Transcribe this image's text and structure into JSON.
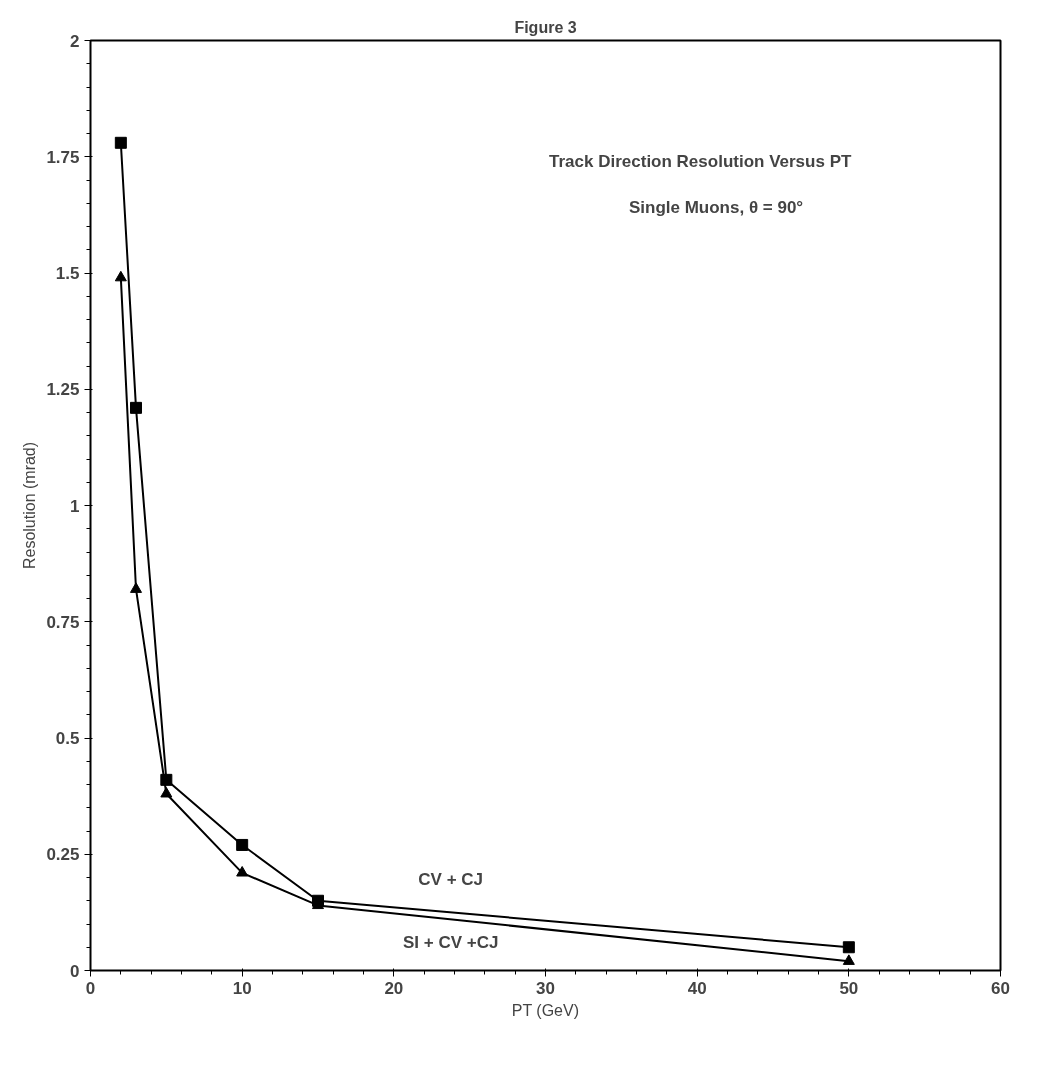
{
  "chart_data": {
    "type": "line",
    "title": "Figure 3",
    "xlabel": "PT (GeV)",
    "ylabel": "Resolution (mrad)",
    "annotations": [
      "Track Direction Resolution Versus PT",
      "Single Muons,  θ = 90°"
    ],
    "series": [
      {
        "name": "CV + CJ",
        "color": "#000000",
        "marker": "square",
        "x": [
          2,
          3,
          5,
          10,
          15,
          50
        ],
        "values": [
          1.78,
          1.21,
          0.41,
          0.27,
          0.15,
          0.05
        ]
      },
      {
        "name": "SI + CV +CJ",
        "color": "#000000",
        "marker": "triangle",
        "x": [
          2,
          3,
          5,
          10,
          15,
          50
        ],
        "values": [
          1.49,
          0.82,
          0.38,
          0.21,
          0.14,
          0.02
        ]
      }
    ],
    "xlim": [
      0,
      60
    ],
    "ylim": [
      0,
      2
    ],
    "xticks": [
      0,
      10,
      20,
      30,
      40,
      50,
      60
    ],
    "yticks": [
      0,
      {
        "value": 0.25,
        "label": "0.25"
      },
      {
        "value": 0.5,
        "label": "0.5"
      },
      {
        "value": 0.75,
        "label": "0.75"
      },
      1,
      {
        "value": 1.25,
        "label": "1.25"
      },
      {
        "value": 1.5,
        "label": "1.5"
      },
      {
        "value": 1.75,
        "label": "1.75"
      },
      2
    ],
    "grid": false,
    "line_style": "solid"
  }
}
